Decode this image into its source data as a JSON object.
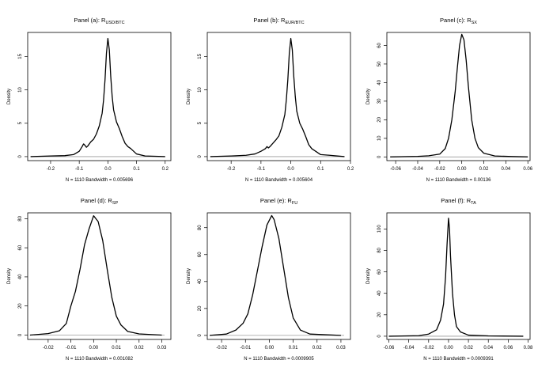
{
  "figure": {
    "ylabel": "Density"
  },
  "chart_data": [
    {
      "type": "line",
      "panel": "a",
      "title": "Panel (a): R",
      "title_sub": "USD/BTC",
      "xlabel": "N = 1110   Bandwidth = 0.005696",
      "ylabel": "Density",
      "xlim": [
        -0.28,
        0.22
      ],
      "ylim": [
        -0.6,
        18.6
      ],
      "xticks": [
        -0.2,
        -0.1,
        0.0,
        0.1,
        0.2
      ],
      "xtick_labels": [
        "-0.2",
        "-0.1",
        "0.0",
        "0.1",
        "0.2"
      ],
      "yticks": [
        0,
        5,
        10,
        15
      ],
      "series": [
        {
          "x": [
            -0.27,
            -0.2,
            -0.15,
            -0.12,
            -0.1,
            -0.09,
            -0.085,
            -0.08,
            -0.075,
            -0.07,
            -0.06,
            -0.05,
            -0.04,
            -0.03,
            -0.02,
            -0.015,
            -0.01,
            -0.005,
            0.0,
            0.005,
            0.01,
            0.015,
            0.02,
            0.03,
            0.04,
            0.05,
            0.06,
            0.07,
            0.08,
            0.1,
            0.13,
            0.2
          ],
          "y": [
            0,
            0.1,
            0.15,
            0.3,
            0.8,
            1.5,
            1.9,
            1.7,
            1.4,
            1.6,
            2.2,
            2.6,
            3.4,
            4.6,
            6.5,
            8.5,
            11.5,
            15.5,
            17.7,
            16.0,
            12.0,
            9.0,
            7.0,
            5.2,
            4.2,
            3.0,
            2.0,
            1.5,
            1.2,
            0.4,
            0.1,
            0
          ]
        }
      ]
    },
    {
      "type": "line",
      "panel": "b",
      "title": "Panel (b): R",
      "title_sub": "EUR/BTC",
      "xlabel": "N = 1110   Bandwidth = 0.005604",
      "ylabel": "Density",
      "xlim": [
        -0.28,
        0.2
      ],
      "ylim": [
        -0.6,
        18.6
      ],
      "xticks": [
        -0.2,
        -0.1,
        0.0,
        0.1,
        0.2
      ],
      "xtick_labels": [
        "-0.2",
        "-0.1",
        "0.0",
        "0.1",
        "0.2"
      ],
      "yticks": [
        0,
        5,
        10,
        15
      ],
      "series": [
        {
          "x": [
            -0.27,
            -0.2,
            -0.15,
            -0.12,
            -0.1,
            -0.085,
            -0.08,
            -0.075,
            -0.07,
            -0.06,
            -0.05,
            -0.04,
            -0.03,
            -0.02,
            -0.015,
            -0.01,
            -0.005,
            0.0,
            0.005,
            0.01,
            0.015,
            0.02,
            0.03,
            0.04,
            0.05,
            0.06,
            0.07,
            0.1,
            0.13,
            0.18
          ],
          "y": [
            0,
            0.1,
            0.2,
            0.4,
            0.8,
            1.2,
            1.5,
            1.3,
            1.5,
            2.0,
            2.5,
            3.1,
            4.4,
            6.3,
            8.5,
            11.5,
            15.5,
            17.7,
            16.0,
            12.0,
            9.0,
            6.8,
            5.0,
            4.1,
            3.0,
            1.8,
            1.2,
            0.3,
            0.2,
            0
          ]
        }
      ]
    },
    {
      "type": "line",
      "panel": "c",
      "title": "Panel (c): R",
      "title_sub": "SX",
      "xlabel": "N = 1110   Bandwidth = 0.00136",
      "ylabel": "Density",
      "xlim": [
        -0.068,
        0.062
      ],
      "ylim": [
        -2,
        67
      ],
      "xticks": [
        -0.06,
        -0.04,
        -0.02,
        0.0,
        0.02,
        0.04,
        0.06
      ],
      "xtick_labels": [
        "-0.06",
        "-0.04",
        "-0.02",
        "0.00",
        "0.02",
        "0.04",
        "0.06"
      ],
      "yticks": [
        0,
        10,
        20,
        30,
        40,
        50,
        60
      ],
      "series": [
        {
          "x": [
            -0.065,
            -0.04,
            -0.03,
            -0.02,
            -0.015,
            -0.012,
            -0.009,
            -0.006,
            -0.004,
            -0.002,
            0.0,
            0.002,
            0.004,
            0.006,
            0.009,
            0.012,
            0.015,
            0.02,
            0.03,
            0.045,
            0.06
          ],
          "y": [
            0,
            0.3,
            0.6,
            1.5,
            4.5,
            10.0,
            20.0,
            35.0,
            48.0,
            60.0,
            66.0,
            63.0,
            52.0,
            38.0,
            20.0,
            10.0,
            5.0,
            2.0,
            0.5,
            0.2,
            0
          ]
        }
      ]
    },
    {
      "type": "line",
      "panel": "d",
      "title": "Panel (d): R",
      "title_sub": "SP",
      "xlabel": "N = 1110   Bandwidth = 0.001082",
      "ylabel": "Density",
      "xlim": [
        -0.029,
        0.034
      ],
      "ylim": [
        -3,
        84
      ],
      "xticks": [
        -0.02,
        -0.01,
        0.0,
        0.01,
        0.02,
        0.03
      ],
      "xtick_labels": [
        "-0.02",
        "-0.01",
        "0.00",
        "0.01",
        "0.02",
        "0.03"
      ],
      "yticks": [
        0,
        20,
        40,
        60,
        80
      ],
      "series": [
        {
          "x": [
            -0.028,
            -0.02,
            -0.015,
            -0.012,
            -0.01,
            -0.008,
            -0.006,
            -0.004,
            -0.002,
            0.0,
            0.002,
            0.004,
            0.006,
            0.008,
            0.01,
            0.012,
            0.015,
            0.02,
            0.03
          ],
          "y": [
            0,
            1.0,
            3.0,
            8.0,
            20.0,
            30.0,
            45.0,
            62.0,
            73.0,
            82.0,
            78.0,
            65.0,
            45.0,
            26.0,
            13.0,
            7.0,
            2.5,
            0.8,
            0
          ]
        }
      ]
    },
    {
      "type": "line",
      "panel": "e",
      "title": "Panel (e): R",
      "title_sub": "FU",
      "xlabel": "N = 1110   Bandwidth = 0.0009905",
      "ylabel": "Density",
      "xlim": [
        -0.026,
        0.034
      ],
      "ylim": [
        -3,
        91
      ],
      "xticks": [
        -0.02,
        -0.01,
        0.0,
        0.01,
        0.02,
        0.03
      ],
      "xtick_labels": [
        "-0.02",
        "-0.01",
        "0.00",
        "0.01",
        "0.02",
        "0.03"
      ],
      "yticks": [
        0,
        20,
        40,
        60,
        80
      ],
      "series": [
        {
          "x": [
            -0.025,
            -0.018,
            -0.014,
            -0.011,
            -0.009,
            -0.007,
            -0.005,
            -0.003,
            -0.001,
            0.001,
            0.002,
            0.004,
            0.006,
            0.008,
            0.01,
            0.013,
            0.017,
            0.03
          ],
          "y": [
            0,
            1.0,
            4.0,
            9.0,
            16.0,
            30.0,
            48.0,
            66.0,
            82.0,
            89.0,
            86.0,
            72.0,
            50.0,
            28.0,
            13.0,
            4.0,
            1.0,
            0
          ]
        }
      ]
    },
    {
      "type": "line",
      "panel": "f",
      "title": "Panel (f): R",
      "title_sub": "TA",
      "xlabel": "N = 1110   Bandwidth = 0.0009391",
      "ylabel": "Density",
      "xlim": [
        -0.062,
        0.082
      ],
      "ylim": [
        -3,
        115
      ],
      "xticks": [
        -0.06,
        -0.04,
        -0.02,
        0.0,
        0.02,
        0.04,
        0.06,
        0.08
      ],
      "xtick_labels": [
        "-0.06",
        "-0.04",
        "-0.02",
        "0.00",
        "0.02",
        "0.04",
        "0.06",
        "0.08"
      ],
      "yticks": [
        0,
        20,
        40,
        60,
        80,
        100
      ],
      "series": [
        {
          "x": [
            -0.06,
            -0.03,
            -0.02,
            -0.012,
            -0.008,
            -0.005,
            -0.003,
            -0.0015,
            0.0,
            0.001,
            0.002,
            0.004,
            0.006,
            0.008,
            0.012,
            0.02,
            0.04,
            0.075
          ],
          "y": [
            0,
            0.5,
            2.0,
            6.0,
            15.0,
            30.0,
            55.0,
            85.0,
            110.0,
            100.0,
            75.0,
            40.0,
            20.0,
            9.0,
            4.0,
            1.0,
            0.3,
            0
          ]
        }
      ]
    }
  ]
}
